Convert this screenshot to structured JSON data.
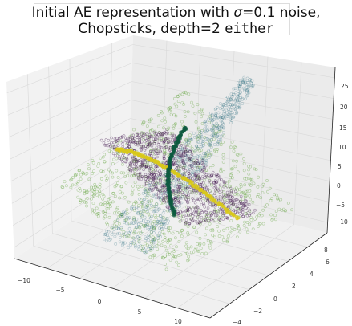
{
  "chart_data": {
    "type": "scatter",
    "projection": "3d",
    "title": {
      "line1_prefix": "Initial AE representation with ",
      "line1_sigma": "σ",
      "line1_suffix": "=0.1 noise,",
      "line2_prefix": "Chopsticks, depth=2 ",
      "line2_mono": "either"
    },
    "x_ticks": [
      "−10",
      "−5",
      "0",
      "5",
      "10"
    ],
    "y_ticks": [
      "−4",
      "−2",
      "0",
      "2",
      "4",
      "6",
      "8"
    ],
    "z_ticks": [
      "−10",
      "−5",
      "0",
      "5",
      "10",
      "15",
      "20",
      "25"
    ],
    "xlim": [
      -12,
      14
    ],
    "ylim": [
      -4,
      9
    ],
    "zlim": [
      -12,
      28
    ],
    "grid": true,
    "colors": {
      "green": "#5aa032",
      "dark_purple": "#3b0f4a",
      "teal_blue": "#2f6f80",
      "yellow": "#d8c81a",
      "dark_green": "#0e5a40",
      "pane": "#f0f0f0",
      "grid": "#d8d8d8"
    },
    "series": [
      {
        "color_key": "green",
        "shape": "flat sheet"
      },
      {
        "color_key": "teal_blue",
        "shape": "tilted sheet"
      },
      {
        "color_key": "dark_purple",
        "shape": "crossing sheet"
      },
      {
        "color_key": "yellow",
        "shape": "curve"
      },
      {
        "color_key": "dark_green",
        "shape": "curve"
      }
    ]
  }
}
